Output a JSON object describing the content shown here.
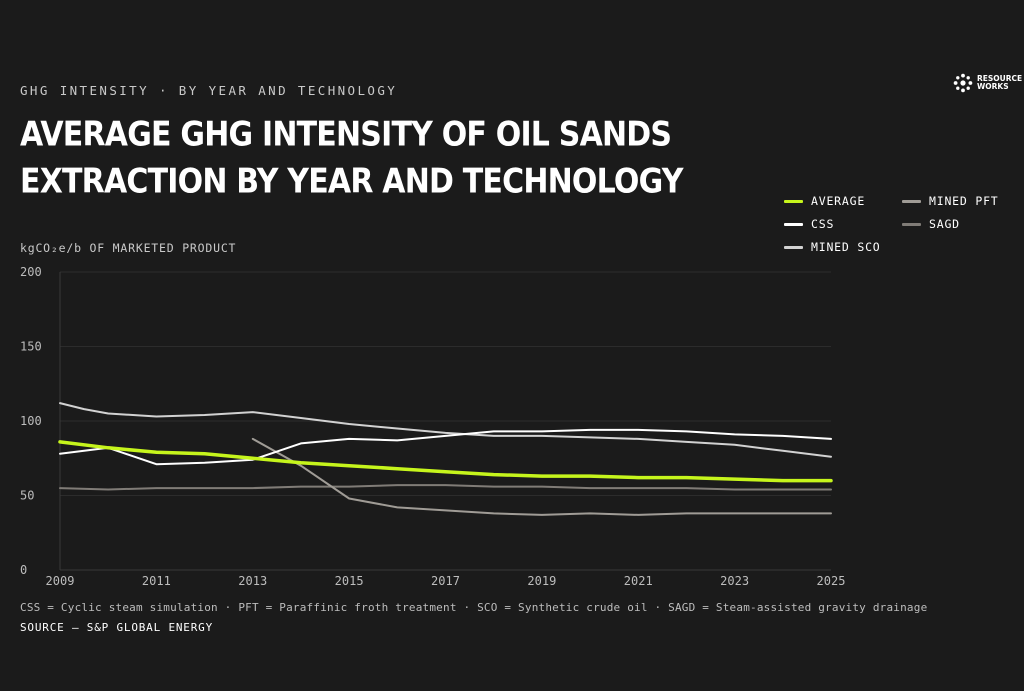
{
  "header": {
    "kicker": "GHG INTENSITY · BY YEAR AND TECHNOLOGY",
    "title": "AVERAGE GHG INTENSITY OF OIL SANDS EXTRACTION BY YEAR AND TECHNOLOGY"
  },
  "logo": {
    "line1": "RESOURCE",
    "line2": "WORKS",
    "icon": "resource-works-logo-icon"
  },
  "footer": {
    "footnote": "CSS = Cyclic steam simulation · PFT = Paraffinic froth treatment · SCO = Synthetic crude oil · SAGD = Steam-assisted gravity drainage",
    "source": "SOURCE — S&P GLOBAL ENERGY"
  },
  "colors": {
    "background": "#1b1b1b",
    "average": "#c6f51c",
    "css": "#ffffff",
    "mined_sco": "#d2d2d2",
    "mined_pft": "#a09c96",
    "sagd": "#807c77",
    "grid": "#2c2c2c"
  },
  "chart_data": {
    "type": "line",
    "title": "AVERAGE GHG INTENSITY OF OIL SANDS EXTRACTION BY YEAR AND TECHNOLOGY",
    "ylabel": "kgCO₂e/b OF MARKETED PRODUCT",
    "xlabel": "",
    "xlim": [
      2009,
      2025
    ],
    "ylim": [
      0,
      200
    ],
    "x_ticks": [
      "2009",
      "2011",
      "2013",
      "2015",
      "2017",
      "2019",
      "2021",
      "2023",
      "2025"
    ],
    "y_ticks": [
      "0",
      "50",
      "100",
      "150",
      "200"
    ],
    "grid": true,
    "legend_position": "top-right",
    "x": [
      2009,
      2010,
      2011,
      2012,
      2013,
      2014,
      2015,
      2016,
      2017,
      2018,
      2019,
      2020,
      2021,
      2022,
      2023,
      2024,
      2025
    ],
    "series": [
      {
        "name": "AVERAGE",
        "color": "#c6f51c",
        "width": 3.5,
        "points": [
          [
            2009,
            86
          ],
          [
            2010,
            82
          ],
          [
            2011,
            79
          ],
          [
            2012,
            78
          ],
          [
            2013,
            75
          ],
          [
            2014,
            72
          ],
          [
            2015,
            70
          ],
          [
            2016,
            68
          ],
          [
            2017,
            66
          ],
          [
            2018,
            64
          ],
          [
            2019,
            63
          ],
          [
            2020,
            63
          ],
          [
            2021,
            62
          ],
          [
            2022,
            62
          ],
          [
            2023,
            61
          ],
          [
            2024,
            60
          ],
          [
            2025,
            60
          ]
        ]
      },
      {
        "name": "CSS",
        "color": "#ffffff",
        "width": 2,
        "points": [
          [
            2009,
            78
          ],
          [
            2010,
            82
          ],
          [
            2011,
            71
          ],
          [
            2012,
            72
          ],
          [
            2013,
            74
          ],
          [
            2014,
            85
          ],
          [
            2015,
            88
          ],
          [
            2016,
            87
          ],
          [
            2017,
            90
          ],
          [
            2018,
            93
          ],
          [
            2019,
            93
          ],
          [
            2020,
            94
          ],
          [
            2021,
            94
          ],
          [
            2022,
            93
          ],
          [
            2023,
            91
          ],
          [
            2024,
            90
          ],
          [
            2025,
            88
          ]
        ]
      },
      {
        "name": "MINED SCO",
        "color": "#d2d2d2",
        "width": 2,
        "points": [
          [
            2009,
            112
          ],
          [
            2009.5,
            108
          ],
          [
            2010,
            105
          ],
          [
            2011,
            103
          ],
          [
            2012,
            104
          ],
          [
            2013,
            106
          ],
          [
            2014,
            102
          ],
          [
            2015,
            98
          ],
          [
            2016,
            95
          ],
          [
            2017,
            92
          ],
          [
            2018,
            90
          ],
          [
            2019,
            90
          ],
          [
            2020,
            89
          ],
          [
            2021,
            88
          ],
          [
            2022,
            86
          ],
          [
            2023,
            84
          ],
          [
            2024,
            80
          ],
          [
            2025,
            76
          ]
        ]
      },
      {
        "name": "MINED PFT",
        "color": "#a09c96",
        "width": 2,
        "points": [
          [
            2013,
            88
          ],
          [
            2014,
            70
          ],
          [
            2015,
            48
          ],
          [
            2016,
            42
          ],
          [
            2017,
            40
          ],
          [
            2018,
            38
          ],
          [
            2019,
            37
          ],
          [
            2020,
            38
          ],
          [
            2021,
            37
          ],
          [
            2022,
            38
          ],
          [
            2023,
            38
          ],
          [
            2024,
            38
          ],
          [
            2025,
            38
          ]
        ]
      },
      {
        "name": "SAGD",
        "color": "#807c77",
        "width": 2,
        "points": [
          [
            2009,
            55
          ],
          [
            2010,
            54
          ],
          [
            2011,
            55
          ],
          [
            2012,
            55
          ],
          [
            2013,
            55
          ],
          [
            2014,
            56
          ],
          [
            2015,
            56
          ],
          [
            2016,
            57
          ],
          [
            2017,
            57
          ],
          [
            2018,
            56
          ],
          [
            2019,
            56
          ],
          [
            2020,
            55
          ],
          [
            2021,
            55
          ],
          [
            2022,
            55
          ],
          [
            2023,
            54
          ],
          [
            2024,
            54
          ],
          [
            2025,
            54
          ]
        ]
      }
    ]
  }
}
